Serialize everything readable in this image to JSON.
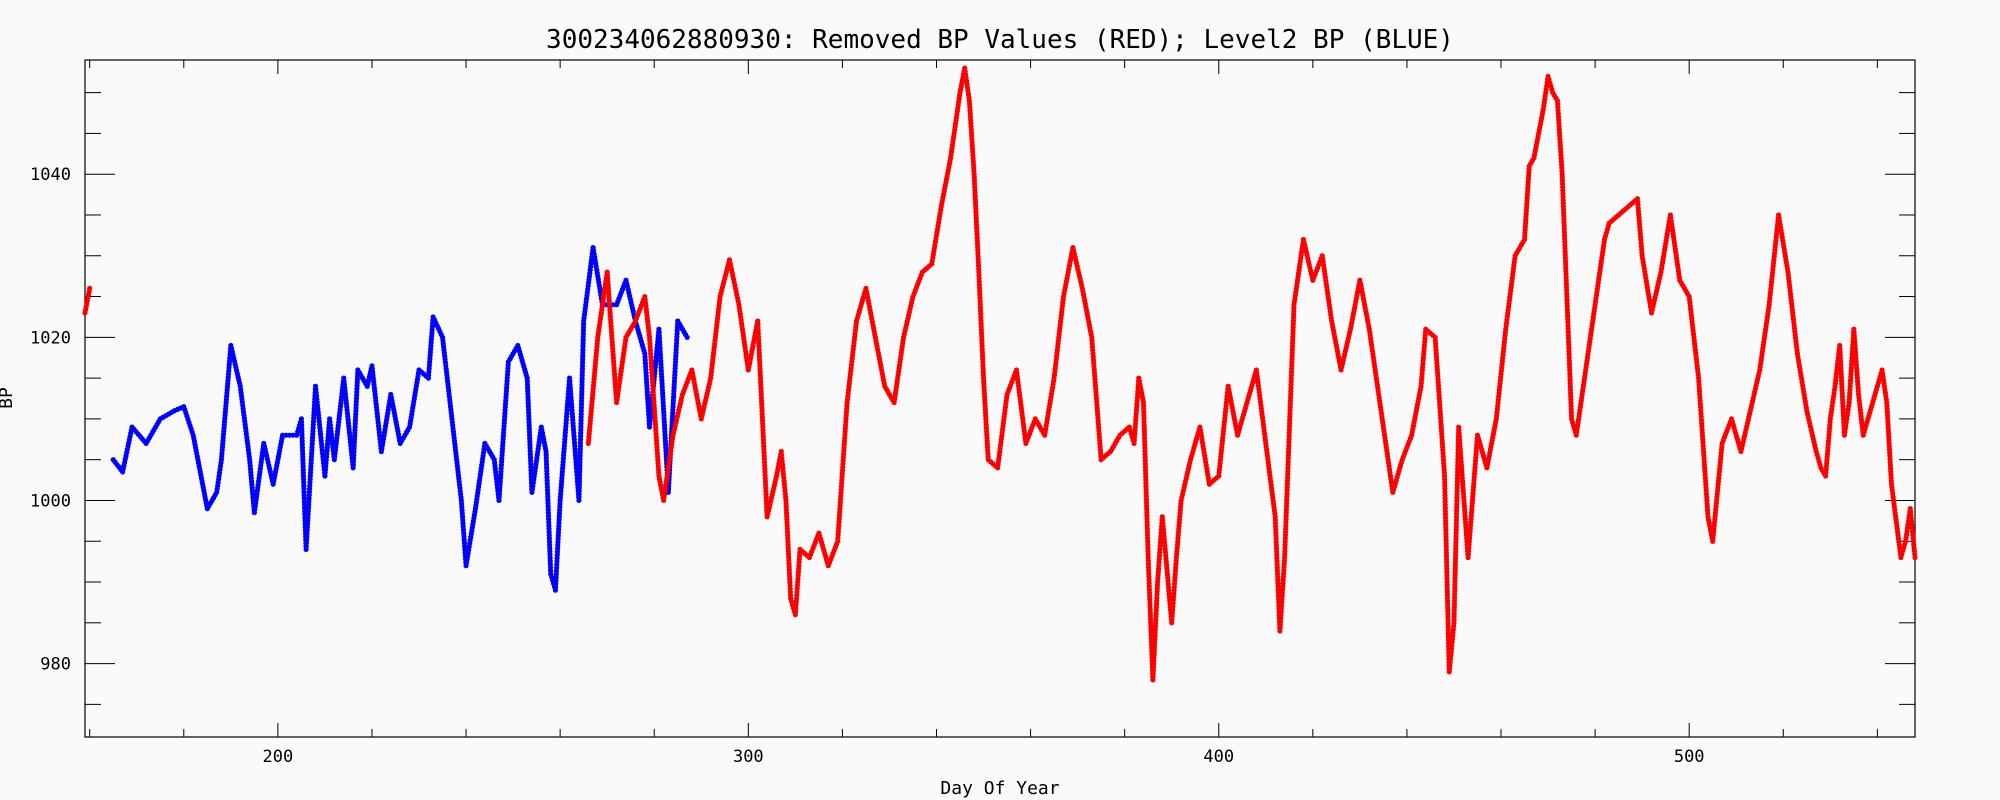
{
  "chart_data": {
    "type": "scatter",
    "title": "300234062880930: Removed BP Values (RED); Level2 BP (BLUE)",
    "xlabel": "Day Of Year",
    "ylabel": "BP",
    "xlim": [
      159,
      548
    ],
    "ylim": [
      971,
      1054
    ],
    "xticks": [
      200,
      300,
      400,
      500
    ],
    "yticks": [
      980,
      1000,
      1020,
      1040
    ],
    "x_minor_step": 20,
    "y_minor_step": 5,
    "grid": false,
    "series": [
      {
        "color": "#0000ff",
        "points": [
          [
            165,
            1005
          ],
          [
            167,
            1003.5
          ],
          [
            169,
            1009
          ],
          [
            172,
            1007
          ],
          [
            175,
            1010
          ],
          [
            178,
            1011
          ],
          [
            180,
            1011.5
          ],
          [
            182,
            1008
          ],
          [
            184,
            1002
          ],
          [
            185,
            999
          ],
          [
            187,
            1001
          ],
          [
            188,
            1005
          ],
          [
            190,
            1019
          ],
          [
            192,
            1014
          ],
          [
            194,
            1005
          ],
          [
            195,
            998.5
          ],
          [
            197,
            1007
          ],
          [
            199,
            1002
          ],
          [
            201,
            1008
          ],
          [
            204,
            1008
          ],
          [
            205,
            1010
          ],
          [
            206,
            994
          ],
          [
            208,
            1014
          ],
          [
            210,
            1003
          ],
          [
            211,
            1010
          ],
          [
            212,
            1005
          ],
          [
            214,
            1015
          ],
          [
            216,
            1004
          ],
          [
            217,
            1016
          ],
          [
            219,
            1014
          ],
          [
            220,
            1016.5
          ],
          [
            222,
            1006
          ],
          [
            224,
            1013
          ],
          [
            226,
            1007
          ],
          [
            228,
            1009
          ],
          [
            230,
            1016
          ],
          [
            232,
            1015
          ],
          [
            233,
            1022.5
          ],
          [
            235,
            1020
          ],
          [
            237,
            1010
          ],
          [
            239,
            1000
          ],
          [
            240,
            992
          ],
          [
            242,
            999
          ],
          [
            244,
            1007
          ],
          [
            246,
            1005
          ],
          [
            247,
            1000
          ],
          [
            249,
            1017
          ],
          [
            251,
            1019
          ],
          [
            253,
            1015
          ],
          [
            254,
            1001
          ],
          [
            256,
            1009
          ],
          [
            257,
            1006
          ],
          [
            258,
            991
          ],
          [
            259,
            989
          ],
          [
            260,
            1000
          ],
          [
            262,
            1015
          ],
          [
            264,
            1000
          ],
          [
            265,
            1022
          ],
          [
            267,
            1031
          ],
          [
            269,
            1024
          ],
          [
            272,
            1024
          ],
          [
            274,
            1027
          ],
          [
            276,
            1022
          ],
          [
            278,
            1018
          ],
          [
            279,
            1009
          ],
          [
            281,
            1021
          ],
          [
            283,
            1001
          ],
          [
            285,
            1022
          ],
          [
            287,
            1020
          ]
        ]
      },
      {
        "color": "#ff0000",
        "points": [
          [
            159,
            1023
          ],
          [
            160,
            1026
          ],
          [
            266,
            1007
          ],
          [
            268,
            1020
          ],
          [
            270,
            1028
          ],
          [
            272,
            1012
          ],
          [
            274,
            1020
          ],
          [
            276,
            1022
          ],
          [
            278,
            1025
          ],
          [
            279,
            1020
          ],
          [
            281,
            1003
          ],
          [
            282,
            1000
          ],
          [
            284,
            1008
          ],
          [
            286,
            1013
          ],
          [
            288,
            1016
          ],
          [
            290,
            1010
          ],
          [
            292,
            1015
          ],
          [
            294,
            1025
          ],
          [
            296,
            1029.5
          ],
          [
            298,
            1024
          ],
          [
            300,
            1016
          ],
          [
            302,
            1022
          ],
          [
            304,
            998
          ],
          [
            306,
            1003
          ],
          [
            307,
            1006
          ],
          [
            308,
            1000
          ],
          [
            309,
            988
          ],
          [
            310,
            986
          ],
          [
            311,
            994
          ],
          [
            313,
            993
          ],
          [
            315,
            996
          ],
          [
            317,
            992
          ],
          [
            319,
            995
          ],
          [
            321,
            1012
          ],
          [
            323,
            1022
          ],
          [
            325,
            1026
          ],
          [
            327,
            1020
          ],
          [
            329,
            1014
          ],
          [
            331,
            1012
          ],
          [
            333,
            1020
          ],
          [
            335,
            1025
          ],
          [
            337,
            1028
          ],
          [
            339,
            1029
          ],
          [
            341,
            1036
          ],
          [
            343,
            1042
          ],
          [
            345,
            1050
          ],
          [
            346,
            1053
          ],
          [
            347,
            1049
          ],
          [
            348,
            1040
          ],
          [
            349,
            1028
          ],
          [
            350,
            1015
          ],
          [
            351,
            1005
          ],
          [
            353,
            1004
          ],
          [
            355,
            1013
          ],
          [
            357,
            1016
          ],
          [
            359,
            1007
          ],
          [
            361,
            1010
          ],
          [
            363,
            1008
          ],
          [
            365,
            1015
          ],
          [
            367,
            1025
          ],
          [
            369,
            1031
          ],
          [
            371,
            1026
          ],
          [
            373,
            1020
          ],
          [
            375,
            1005
          ],
          [
            377,
            1006
          ],
          [
            379,
            1008
          ],
          [
            381,
            1009
          ],
          [
            382,
            1007
          ],
          [
            383,
            1015
          ],
          [
            384,
            1012
          ],
          [
            385,
            993
          ],
          [
            386,
            978
          ],
          [
            387,
            990
          ],
          [
            388,
            998
          ],
          [
            390,
            985
          ],
          [
            391,
            993
          ],
          [
            392,
            1000
          ],
          [
            394,
            1005
          ],
          [
            396,
            1009
          ],
          [
            398,
            1002
          ],
          [
            400,
            1003
          ],
          [
            402,
            1014
          ],
          [
            404,
            1008
          ],
          [
            406,
            1012
          ],
          [
            408,
            1016
          ],
          [
            410,
            1007
          ],
          [
            412,
            998
          ],
          [
            413,
            984
          ],
          [
            414,
            993
          ],
          [
            416,
            1024
          ],
          [
            418,
            1032
          ],
          [
            420,
            1027
          ],
          [
            422,
            1030
          ],
          [
            424,
            1022
          ],
          [
            426,
            1016
          ],
          [
            428,
            1021
          ],
          [
            430,
            1027
          ],
          [
            432,
            1021
          ],
          [
            434,
            1013
          ],
          [
            436,
            1005
          ],
          [
            437,
            1001
          ],
          [
            439,
            1005
          ],
          [
            441,
            1008
          ],
          [
            443,
            1014
          ],
          [
            444,
            1021
          ],
          [
            446,
            1020
          ],
          [
            448,
            1003
          ],
          [
            449,
            979
          ],
          [
            450,
            985
          ],
          [
            451,
            1009
          ],
          [
            453,
            993
          ],
          [
            455,
            1008
          ],
          [
            457,
            1004
          ],
          [
            459,
            1010
          ],
          [
            461,
            1021
          ],
          [
            463,
            1030
          ],
          [
            465,
            1032
          ],
          [
            466,
            1041
          ],
          [
            467,
            1042
          ],
          [
            469,
            1048
          ],
          [
            470,
            1052
          ],
          [
            471,
            1050
          ],
          [
            472,
            1049
          ],
          [
            473,
            1040
          ],
          [
            474,
            1025
          ],
          [
            475,
            1010
          ],
          [
            476,
            1008
          ],
          [
            478,
            1016
          ],
          [
            480,
            1024
          ],
          [
            482,
            1032
          ],
          [
            483,
            1034
          ],
          [
            485,
            1035
          ],
          [
            487,
            1036
          ],
          [
            489,
            1037
          ],
          [
            490,
            1030
          ],
          [
            492,
            1023
          ],
          [
            494,
            1028
          ],
          [
            496,
            1035
          ],
          [
            498,
            1027
          ],
          [
            500,
            1025
          ],
          [
            502,
            1015
          ],
          [
            504,
            998
          ],
          [
            505,
            995
          ],
          [
            507,
            1007
          ],
          [
            509,
            1010
          ],
          [
            511,
            1006
          ],
          [
            513,
            1011
          ],
          [
            515,
            1016
          ],
          [
            517,
            1024
          ],
          [
            519,
            1035
          ],
          [
            521,
            1028
          ],
          [
            523,
            1018
          ],
          [
            525,
            1011
          ],
          [
            527,
            1006
          ],
          [
            528,
            1004
          ],
          [
            529,
            1003
          ],
          [
            530,
            1010
          ],
          [
            531,
            1014
          ],
          [
            532,
            1019
          ],
          [
            533,
            1008
          ],
          [
            534,
            1012
          ],
          [
            535,
            1021
          ],
          [
            536,
            1013
          ],
          [
            537,
            1008
          ],
          [
            538,
            1010
          ],
          [
            540,
            1014
          ],
          [
            541,
            1016
          ],
          [
            542,
            1012
          ],
          [
            543,
            1002
          ],
          [
            545,
            993
          ],
          [
            546,
            995
          ],
          [
            547,
            999
          ],
          [
            548,
            993
          ]
        ]
      }
    ]
  }
}
